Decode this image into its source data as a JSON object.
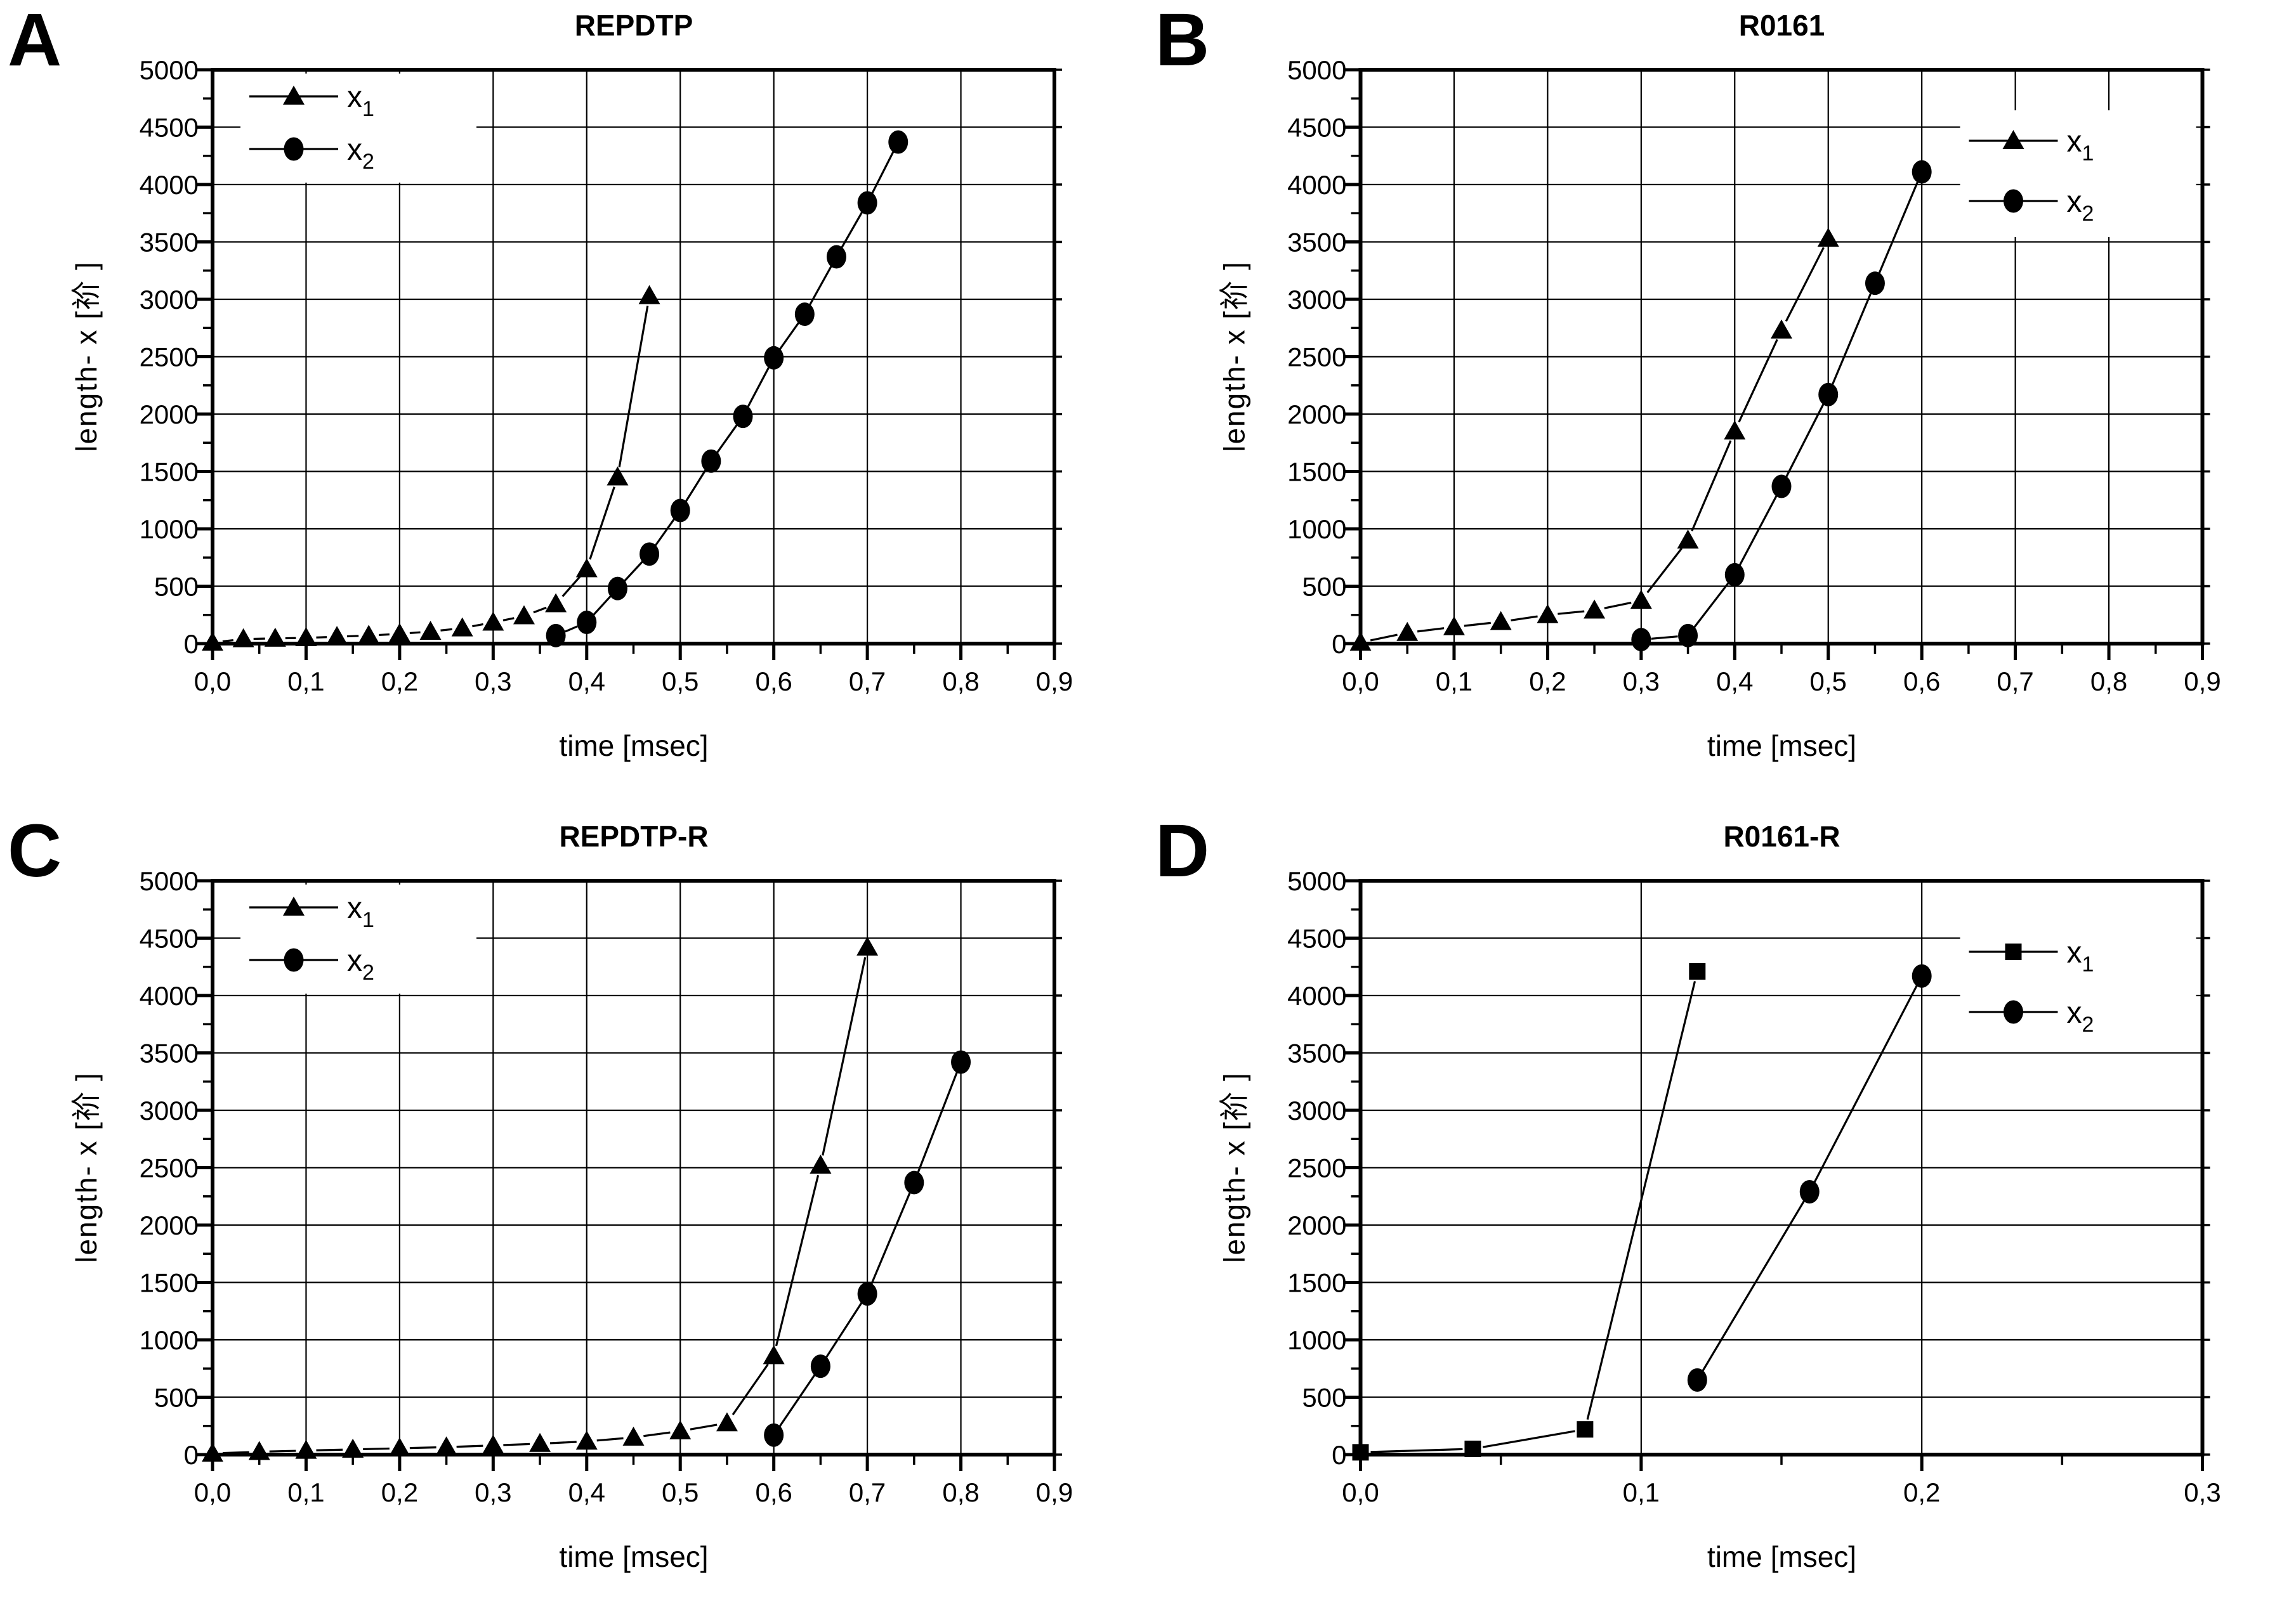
{
  "page": {
    "background": "#ffffff",
    "ink": "#000000"
  },
  "chart_data": [
    {
      "panel_letter": "A",
      "title": "REPDTP",
      "type": "line",
      "xlabel": "time [msec]",
      "ylabel": "length- x [祄 ]",
      "xlim": [
        0.0,
        0.9
      ],
      "ylim": [
        0,
        5000
      ],
      "grid": true,
      "x_minor_step": 0.05,
      "y_minor_step": 250,
      "x_ticks": [
        {
          "v": 0.0,
          "label": "0,0"
        },
        {
          "v": 0.1,
          "label": "0,1"
        },
        {
          "v": 0.2,
          "label": "0,2"
        },
        {
          "v": 0.3,
          "label": "0,3"
        },
        {
          "v": 0.4,
          "label": "0,4"
        },
        {
          "v": 0.5,
          "label": "0,5"
        },
        {
          "v": 0.6,
          "label": "0,6"
        },
        {
          "v": 0.7,
          "label": "0,7"
        },
        {
          "v": 0.8,
          "label": "0,8"
        },
        {
          "v": 0.9,
          "label": "0,9"
        }
      ],
      "y_ticks": [
        {
          "v": 0,
          "label": "0"
        },
        {
          "v": 500,
          "label": "500"
        },
        {
          "v": 1000,
          "label": "1000"
        },
        {
          "v": 1500,
          "label": "1500"
        },
        {
          "v": 2000,
          "label": "2000"
        },
        {
          "v": 2500,
          "label": "2500"
        },
        {
          "v": 3000,
          "label": "3000"
        },
        {
          "v": 3500,
          "label": "3500"
        },
        {
          "v": 4000,
          "label": "4000"
        },
        {
          "v": 4500,
          "label": "4500"
        },
        {
          "v": 5000,
          "label": "5000"
        }
      ],
      "legend": {
        "position": "top-left",
        "entries": [
          {
            "base": "x",
            "sub": "1",
            "marker": "triangle"
          },
          {
            "base": "x",
            "sub": "2",
            "marker": "circle"
          }
        ]
      },
      "series": [
        {
          "name": "x1",
          "marker": "triangle",
          "points": [
            [
              0.0,
              10
            ],
            [
              0.033,
              40
            ],
            [
              0.067,
              45
            ],
            [
              0.1,
              50
            ],
            [
              0.133,
              60
            ],
            [
              0.167,
              70
            ],
            [
              0.2,
              85
            ],
            [
              0.233,
              105
            ],
            [
              0.267,
              135
            ],
            [
              0.3,
              185
            ],
            [
              0.333,
              240
            ],
            [
              0.367,
              345
            ],
            [
              0.4,
              650
            ],
            [
              0.433,
              1450
            ],
            [
              0.467,
              3030
            ]
          ]
        },
        {
          "name": "x2",
          "marker": "circle",
          "points": [
            [
              0.367,
              70
            ],
            [
              0.4,
              185
            ],
            [
              0.433,
              480
            ],
            [
              0.467,
              780
            ],
            [
              0.5,
              1160
            ],
            [
              0.533,
              1590
            ],
            [
              0.567,
              1980
            ],
            [
              0.6,
              2490
            ],
            [
              0.633,
              2870
            ],
            [
              0.667,
              3370
            ],
            [
              0.7,
              3840
            ],
            [
              0.733,
              4370
            ]
          ]
        }
      ]
    },
    {
      "panel_letter": "B",
      "title": "R0161",
      "type": "line",
      "xlabel": "time [msec]",
      "ylabel": "length- x [祄 ]",
      "xlim": [
        0.0,
        0.9
      ],
      "ylim": [
        0,
        5000
      ],
      "grid": true,
      "x_minor_step": 0.05,
      "y_minor_step": 250,
      "x_ticks": [
        {
          "v": 0.0,
          "label": "0,0"
        },
        {
          "v": 0.1,
          "label": "0,1"
        },
        {
          "v": 0.2,
          "label": "0,2"
        },
        {
          "v": 0.3,
          "label": "0,3"
        },
        {
          "v": 0.4,
          "label": "0,4"
        },
        {
          "v": 0.5,
          "label": "0,5"
        },
        {
          "v": 0.6,
          "label": "0,6"
        },
        {
          "v": 0.7,
          "label": "0,7"
        },
        {
          "v": 0.8,
          "label": "0,8"
        },
        {
          "v": 0.9,
          "label": "0,9"
        }
      ],
      "y_ticks": [
        {
          "v": 0,
          "label": "0"
        },
        {
          "v": 500,
          "label": "500"
        },
        {
          "v": 1000,
          "label": "1000"
        },
        {
          "v": 1500,
          "label": "1500"
        },
        {
          "v": 2000,
          "label": "2000"
        },
        {
          "v": 2500,
          "label": "2500"
        },
        {
          "v": 3000,
          "label": "3000"
        },
        {
          "v": 3500,
          "label": "3500"
        },
        {
          "v": 4000,
          "label": "4000"
        },
        {
          "v": 4500,
          "label": "4500"
        },
        {
          "v": 5000,
          "label": "5000"
        }
      ],
      "legend": {
        "position": "top-right",
        "entries": [
          {
            "base": "x",
            "sub": "1",
            "marker": "triangle"
          },
          {
            "base": "x",
            "sub": "2",
            "marker": "circle"
          }
        ]
      },
      "series": [
        {
          "name": "x1",
          "marker": "triangle",
          "points": [
            [
              0.0,
              10
            ],
            [
              0.05,
              95
            ],
            [
              0.1,
              145
            ],
            [
              0.15,
              190
            ],
            [
              0.2,
              250
            ],
            [
              0.25,
              290
            ],
            [
              0.3,
              375
            ],
            [
              0.35,
              900
            ],
            [
              0.4,
              1850
            ],
            [
              0.45,
              2730
            ],
            [
              0.5,
              3530
            ]
          ]
        },
        {
          "name": "x2",
          "marker": "circle",
          "points": [
            [
              0.3,
              35
            ],
            [
              0.35,
              70
            ],
            [
              0.4,
              600
            ],
            [
              0.45,
              1370
            ],
            [
              0.5,
              2170
            ],
            [
              0.55,
              3140
            ],
            [
              0.6,
              4110
            ]
          ]
        }
      ]
    },
    {
      "panel_letter": "C",
      "title": "REPDTP-R",
      "type": "line",
      "xlabel": "time [msec]",
      "ylabel": "length- x [祄 ]",
      "xlim": [
        0.0,
        0.9
      ],
      "ylim": [
        0,
        5000
      ],
      "grid": true,
      "x_minor_step": 0.05,
      "y_minor_step": 250,
      "x_ticks": [
        {
          "v": 0.0,
          "label": "0,0"
        },
        {
          "v": 0.1,
          "label": "0,1"
        },
        {
          "v": 0.2,
          "label": "0,2"
        },
        {
          "v": 0.3,
          "label": "0,3"
        },
        {
          "v": 0.4,
          "label": "0,4"
        },
        {
          "v": 0.5,
          "label": "0,5"
        },
        {
          "v": 0.6,
          "label": "0,6"
        },
        {
          "v": 0.7,
          "label": "0,7"
        },
        {
          "v": 0.8,
          "label": "0,8"
        },
        {
          "v": 0.9,
          "label": "0,9"
        }
      ],
      "y_ticks": [
        {
          "v": 0,
          "label": "0"
        },
        {
          "v": 500,
          "label": "500"
        },
        {
          "v": 1000,
          "label": "1000"
        },
        {
          "v": 1500,
          "label": "1500"
        },
        {
          "v": 2000,
          "label": "2000"
        },
        {
          "v": 2500,
          "label": "2500"
        },
        {
          "v": 3000,
          "label": "3000"
        },
        {
          "v": 3500,
          "label": "3500"
        },
        {
          "v": 4000,
          "label": "4000"
        },
        {
          "v": 4500,
          "label": "4500"
        },
        {
          "v": 5000,
          "label": "5000"
        }
      ],
      "legend": {
        "position": "top-left",
        "entries": [
          {
            "base": "x",
            "sub": "1",
            "marker": "triangle"
          },
          {
            "base": "x",
            "sub": "2",
            "marker": "circle"
          }
        ]
      },
      "series": [
        {
          "name": "x1",
          "marker": "triangle",
          "points": [
            [
              0.0,
              10
            ],
            [
              0.05,
              25
            ],
            [
              0.1,
              35
            ],
            [
              0.15,
              45
            ],
            [
              0.2,
              55
            ],
            [
              0.25,
              65
            ],
            [
              0.3,
              80
            ],
            [
              0.35,
              95
            ],
            [
              0.4,
              115
            ],
            [
              0.45,
              150
            ],
            [
              0.5,
              205
            ],
            [
              0.55,
              275
            ],
            [
              0.6,
              860
            ],
            [
              0.65,
              2520
            ],
            [
              0.7,
              4420
            ]
          ]
        },
        {
          "name": "x2",
          "marker": "circle",
          "points": [
            [
              0.6,
              170
            ],
            [
              0.65,
              770
            ],
            [
              0.7,
              1400
            ],
            [
              0.75,
              2370
            ],
            [
              0.8,
              3420
            ]
          ]
        }
      ]
    },
    {
      "panel_letter": "D",
      "title": "R0161-R",
      "type": "line",
      "xlabel": "time [msec]",
      "ylabel": "length- x [祄 ]",
      "xlim": [
        0.0,
        0.3
      ],
      "ylim": [
        0,
        5000
      ],
      "grid": true,
      "x_minor_step": 0.05,
      "y_minor_step": 250,
      "x_ticks": [
        {
          "v": 0.0,
          "label": "0,0"
        },
        {
          "v": 0.1,
          "label": "0,1"
        },
        {
          "v": 0.2,
          "label": "0,2"
        },
        {
          "v": 0.3,
          "label": "0,3"
        }
      ],
      "y_ticks": [
        {
          "v": 0,
          "label": "0"
        },
        {
          "v": 500,
          "label": "500"
        },
        {
          "v": 1000,
          "label": "1000"
        },
        {
          "v": 1500,
          "label": "1500"
        },
        {
          "v": 2000,
          "label": "2000"
        },
        {
          "v": 2500,
          "label": "2500"
        },
        {
          "v": 3000,
          "label": "3000"
        },
        {
          "v": 3500,
          "label": "3500"
        },
        {
          "v": 4000,
          "label": "4000"
        },
        {
          "v": 4500,
          "label": "4500"
        },
        {
          "v": 5000,
          "label": "5000"
        }
      ],
      "legend": {
        "position": "top-right",
        "entries": [
          {
            "base": "x",
            "sub": "1",
            "marker": "square"
          },
          {
            "base": "x",
            "sub": "2",
            "marker": "circle"
          }
        ]
      },
      "series": [
        {
          "name": "x1",
          "marker": "square",
          "points": [
            [
              0.0,
              20
            ],
            [
              0.04,
              50
            ],
            [
              0.08,
              220
            ],
            [
              0.12,
              4210
            ]
          ]
        },
        {
          "name": "x2",
          "marker": "circle",
          "points": [
            [
              0.12,
              650
            ],
            [
              0.16,
              2290
            ],
            [
              0.2,
              4170
            ]
          ]
        }
      ]
    }
  ]
}
